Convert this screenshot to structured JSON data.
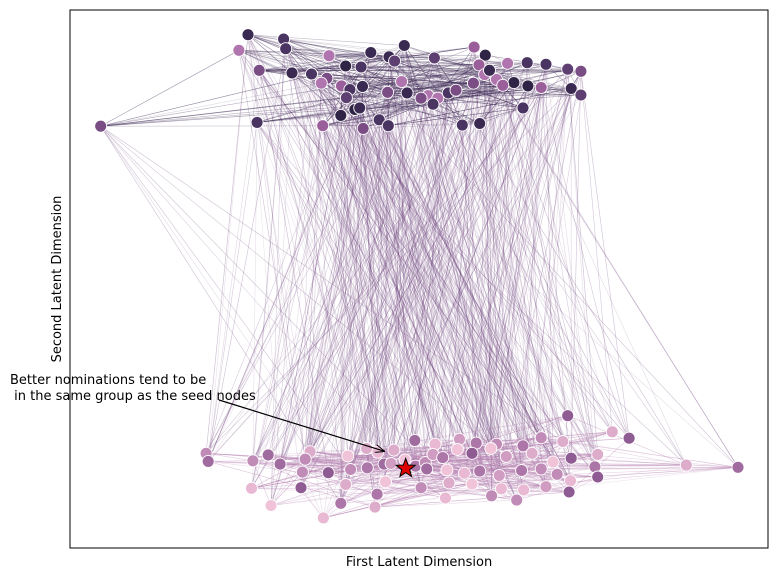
{
  "chart_data": {
    "type": "scatter",
    "title": "",
    "xlabel": "First Latent Dimension",
    "ylabel": "Second Latent Dimension",
    "xlim": [
      0,
      100
    ],
    "ylim": [
      0,
      100
    ],
    "grid": false,
    "ticks_shown": false,
    "colors": {
      "dark_group": "#3e2a55",
      "light_group": "#d9a6c9",
      "edge_cross": "#6b3f7a",
      "edge_bottom": "#b57fb0",
      "seed_star": "#e00000"
    },
    "annotation": {
      "lines": [
        "Better nominations tend to be",
        " in the same group as the seed nodes"
      ],
      "arrow_to": {
        "x": 45,
        "y": 18
      }
    },
    "seed": {
      "x": 48.1,
      "y": 14.8
    },
    "groups": [
      {
        "id": "top",
        "points": [
          [
            25.5,
            95.4
          ],
          [
            30.6,
            94.6
          ],
          [
            24.2,
            92.5
          ],
          [
            30.9,
            92.8
          ],
          [
            37.1,
            91.5
          ],
          [
            43.1,
            92.1
          ],
          [
            45.7,
            91.3
          ],
          [
            47.9,
            93.4
          ],
          [
            57.9,
            93.1
          ],
          [
            59.5,
            91.6
          ],
          [
            62.7,
            90.1
          ],
          [
            65.5,
            90.2
          ],
          [
            68.2,
            89.9
          ],
          [
            71.3,
            89.0
          ],
          [
            73.2,
            88.6
          ],
          [
            27.1,
            88.8
          ],
          [
            31.8,
            88.3
          ],
          [
            34.6,
            88.1
          ],
          [
            36.8,
            87.3
          ],
          [
            39.5,
            89.6
          ],
          [
            41.7,
            89.4
          ],
          [
            46.5,
            90.5
          ],
          [
            52.2,
            91.1
          ],
          [
            58.6,
            89.8
          ],
          [
            59.4,
            88.0
          ],
          [
            61.1,
            87.1
          ],
          [
            63.6,
            86.5
          ],
          [
            65.6,
            85.9
          ],
          [
            67.5,
            85.6
          ],
          [
            71.8,
            85.4
          ],
          [
            73.2,
            84.2
          ],
          [
            36.0,
            86.4
          ],
          [
            38.9,
            85.9
          ],
          [
            40.1,
            85.2
          ],
          [
            41.9,
            85.8
          ],
          [
            45.5,
            84.7
          ],
          [
            48.3,
            84.6
          ],
          [
            51.3,
            84.1
          ],
          [
            52.7,
            83.6
          ],
          [
            54.2,
            84.6
          ],
          [
            55.3,
            85.1
          ],
          [
            57.8,
            86.4
          ],
          [
            60.1,
            88.8
          ],
          [
            39.6,
            83.7
          ],
          [
            40.8,
            81.5
          ],
          [
            38.8,
            80.4
          ],
          [
            41.5,
            81.8
          ],
          [
            44.3,
            79.6
          ],
          [
            45.6,
            78.5
          ],
          [
            36.2,
            78.5
          ],
          [
            26.8,
            79.1
          ],
          [
            64.9,
            81.8
          ],
          [
            58.7,
            78.9
          ],
          [
            56.2,
            78.6
          ],
          [
            50.3,
            83.6
          ],
          [
            47.5,
            86.7
          ],
          [
            42.0,
            78.0
          ],
          [
            52.0,
            82.5
          ],
          [
            62.0,
            86.0
          ],
          [
            4.4,
            78.4
          ]
        ]
      },
      {
        "id": "bottom",
        "points": [
          [
            19.5,
            17.6
          ],
          [
            19.8,
            16.1
          ],
          [
            34.4,
            17.9
          ],
          [
            42.5,
            18.5
          ],
          [
            46.4,
            18.2
          ],
          [
            49.4,
            20.0
          ],
          [
            52.3,
            19.3
          ],
          [
            55.8,
            20.2
          ],
          [
            58.2,
            19.5
          ],
          [
            61.1,
            19.3
          ],
          [
            64.9,
            19.0
          ],
          [
            67.5,
            20.5
          ],
          [
            70.6,
            19.8
          ],
          [
            71.3,
            24.6
          ],
          [
            77.7,
            21.6
          ],
          [
            80.1,
            20.4
          ],
          [
            26.2,
            16.2
          ],
          [
            28.4,
            17.3
          ],
          [
            33.7,
            16.5
          ],
          [
            39.8,
            17.1
          ],
          [
            44.1,
            17.8
          ],
          [
            45.0,
            15.6
          ],
          [
            48.0,
            16.4
          ],
          [
            49.5,
            15.2
          ],
          [
            50.9,
            15.9
          ],
          [
            52.0,
            17.4
          ],
          [
            53.4,
            16.8
          ],
          [
            55.5,
            18.3
          ],
          [
            57.6,
            17.6
          ],
          [
            60.3,
            18.5
          ],
          [
            62.5,
            17.0
          ],
          [
            66.2,
            17.6
          ],
          [
            69.2,
            16.0
          ],
          [
            71.8,
            16.7
          ],
          [
            75.6,
            17.4
          ],
          [
            75.2,
            15.1
          ],
          [
            88.3,
            15.4
          ],
          [
            95.7,
            15.0
          ],
          [
            30.1,
            15.6
          ],
          [
            33.3,
            14.1
          ],
          [
            37.0,
            14.0
          ],
          [
            40.2,
            14.6
          ],
          [
            42.6,
            14.9
          ],
          [
            46.0,
            15.7
          ],
          [
            51.1,
            14.7
          ],
          [
            54.0,
            14.5
          ],
          [
            56.5,
            13.9
          ],
          [
            58.7,
            14.3
          ],
          [
            61.5,
            13.5
          ],
          [
            64.7,
            14.4
          ],
          [
            67.5,
            14.7
          ],
          [
            69.8,
            13.7
          ],
          [
            71.7,
            12.5
          ],
          [
            75.6,
            13.2
          ],
          [
            33.1,
            11.2
          ],
          [
            39.5,
            11.8
          ],
          [
            45.2,
            12.3
          ],
          [
            50.3,
            11.2
          ],
          [
            54.3,
            12.1
          ],
          [
            57.6,
            11.9
          ],
          [
            61.8,
            11.0
          ],
          [
            65.0,
            10.8
          ],
          [
            68.2,
            11.4
          ],
          [
            71.5,
            10.4
          ],
          [
            26.0,
            11.1
          ],
          [
            38.8,
            8.3
          ],
          [
            43.7,
            7.6
          ],
          [
            53.8,
            9.3
          ],
          [
            60.4,
            9.7
          ],
          [
            64.0,
            8.9
          ],
          [
            28.8,
            7.9
          ],
          [
            36.3,
            5.6
          ],
          [
            44.0,
            10.0
          ]
        ]
      }
    ]
  }
}
